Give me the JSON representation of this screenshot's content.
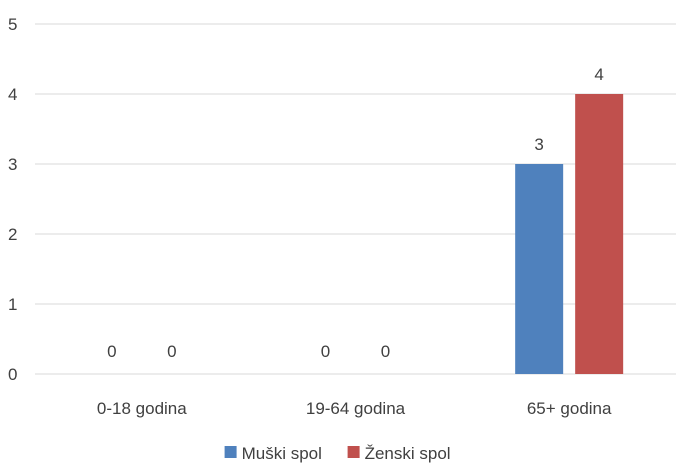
{
  "chart_data": {
    "type": "bar",
    "categories": [
      "0-18 godina",
      "19-64 godina",
      "65+ godina"
    ],
    "series": [
      {
        "name": "Muški spol",
        "values": [
          0,
          0,
          3
        ],
        "color": "#4F81BD"
      },
      {
        "name": "Ženski spol",
        "values": [
          0,
          0,
          4
        ],
        "color": "#C0504D"
      }
    ],
    "title": "",
    "xlabel": "",
    "ylabel": "",
    "ylim": [
      0,
      5
    ],
    "yticks": [
      "0",
      "1",
      "2",
      "3",
      "4",
      "5"
    ],
    "grid": true,
    "legend_position": "bottom",
    "data_labels": true,
    "gridline_color": "#D9D9D9"
  }
}
